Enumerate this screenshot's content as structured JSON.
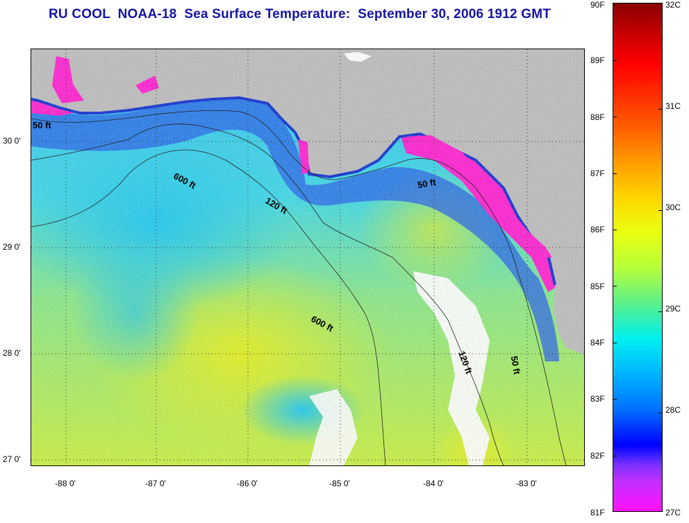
{
  "title": "RU COOL  NOAA-18  Sea Surface Temperature:  September 30, 2006 1912 GMT",
  "map": {
    "lat_ticks": [
      "30 0'",
      "29 0'",
      "28 0'",
      "27 0'"
    ],
    "lon_ticks": [
      "-88 0'",
      "-87 0'",
      "-86 0'",
      "-85 0'",
      "-84 0'",
      "-83 0'"
    ],
    "contour_labels": [
      "50 ft",
      "600 ft",
      "120 ft",
      "50 ft",
      "600 ft",
      "120 ft",
      "50 ft"
    ],
    "land_color": "#bdbdbd",
    "cloud_color": "#ffffff",
    "grid": "dotted"
  },
  "colorbar": {
    "fahrenheit_labels": [
      "90F",
      "89F",
      "88F",
      "87F",
      "86F",
      "85F",
      "84F",
      "83F",
      "82F",
      "81F"
    ],
    "celsius_labels": [
      "32C",
      "31C",
      "30C",
      "29C",
      "28C",
      "27C"
    ],
    "range_f": [
      81,
      90
    ],
    "range_c": [
      27,
      32
    ],
    "colors": [
      "#8a0000",
      "#ff0000",
      "#ff9900",
      "#e9ff10",
      "#00f0f0",
      "#0000ff",
      "#ff10ff"
    ]
  }
}
